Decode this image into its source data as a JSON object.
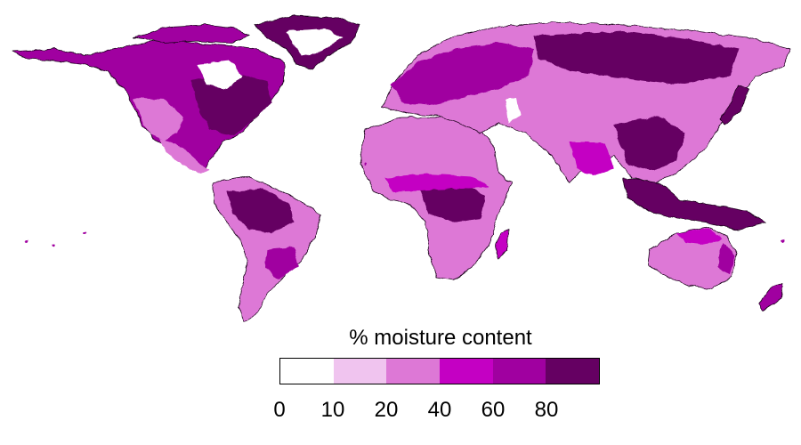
{
  "legend": {
    "title": "% moisture content",
    "classes": [
      {
        "min": 0,
        "max": 10,
        "color": "#ffffff"
      },
      {
        "min": 10,
        "max": 20,
        "color": "#f0c4ef"
      },
      {
        "min": 20,
        "max": 40,
        "color": "#dd78d6"
      },
      {
        "min": 40,
        "max": 60,
        "color": "#c400c3"
      },
      {
        "min": 60,
        "max": 80,
        "color": "#a000a0"
      },
      {
        "min": 80,
        "max": 100,
        "color": "#650062"
      }
    ],
    "tick_labels": [
      "0",
      "10",
      "20",
      "40",
      "60",
      "80"
    ]
  }
}
